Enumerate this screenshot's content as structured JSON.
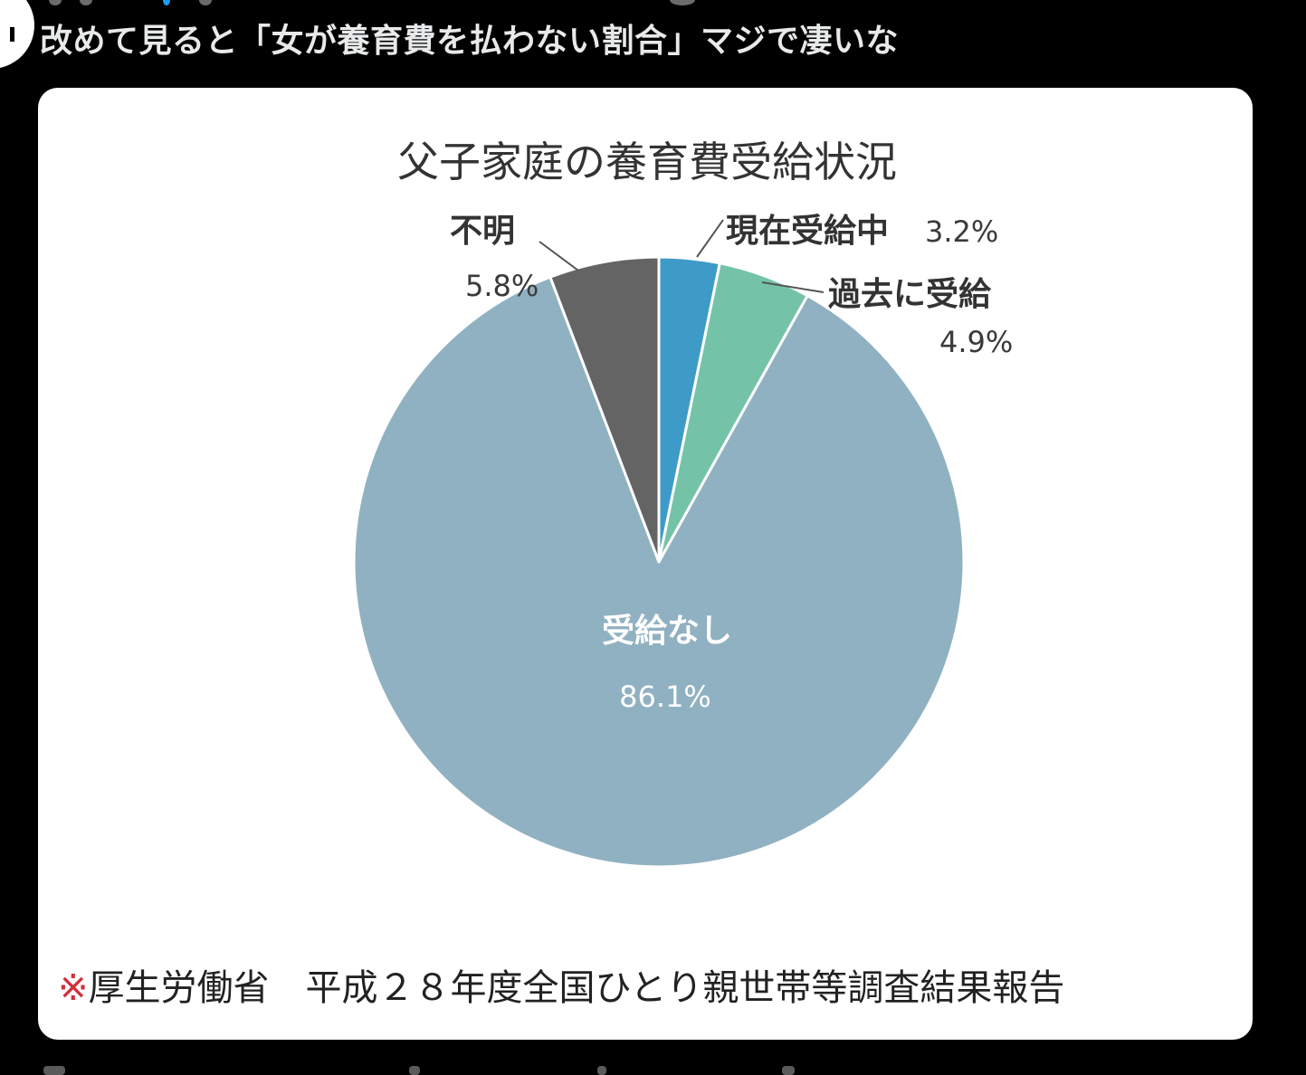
{
  "tweet": {
    "text": "改めて見ると「女が養育費を払わない割合」マジで凄いな"
  },
  "chart_data": {
    "type": "pie",
    "title": "父子家庭の養育費受給状況",
    "slices": [
      {
        "label": "現在受給中",
        "value": 3.2,
        "pct_text": "3.2%",
        "color": "#3e9ac6"
      },
      {
        "label": "過去に受給",
        "value": 4.9,
        "pct_text": "4.9%",
        "color": "#74c3a9"
      },
      {
        "label": "受給なし",
        "value": 86.1,
        "pct_text": "86.1%",
        "color": "#90b1c1"
      },
      {
        "label": "不明",
        "value": 5.8,
        "pct_text": "5.8%",
        "color": "#646464"
      }
    ],
    "start_angle": "12 o'clock, clockwise",
    "legend": "none (labels placed around and inside the pie)"
  },
  "source": {
    "mark": "※",
    "text": "厚生労働省　平成２８年度全国ひとり親世帯等調査結果報告"
  },
  "colors": {
    "page_background": "#000000",
    "tweet_text": "#e7e9ea",
    "card_background": "#ffffff",
    "source_mark": "#d0303a"
  }
}
